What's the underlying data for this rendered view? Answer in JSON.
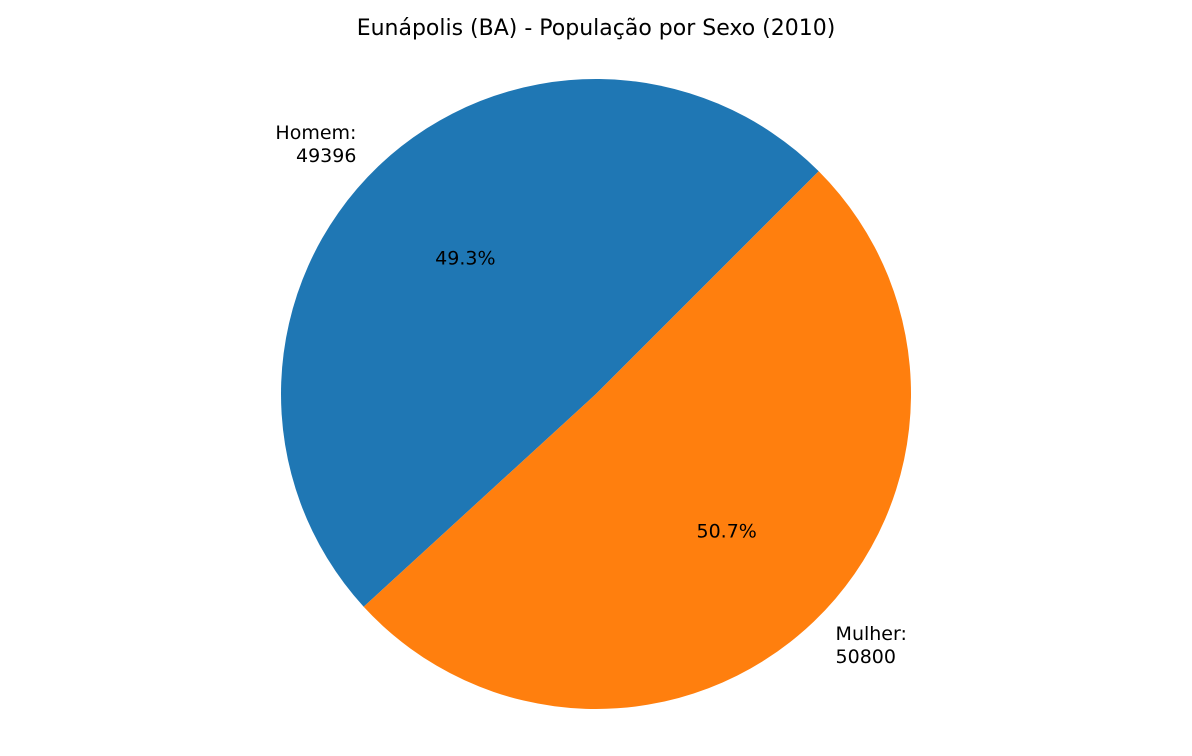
{
  "chart_data": {
    "type": "pie",
    "title": "Eunápolis (BA) - População por Sexo (2010)",
    "slices": [
      {
        "label": "Homem:",
        "value": 49396,
        "value_text": "49396",
        "pct": "49.3%",
        "color": "#1f77b4"
      },
      {
        "label": "Mulher:",
        "value": 50800,
        "value_text": "50800",
        "pct": "50.7%",
        "color": "#ff7f0e"
      }
    ],
    "start_angle_deg": 45,
    "direction": "counterclockwise"
  }
}
